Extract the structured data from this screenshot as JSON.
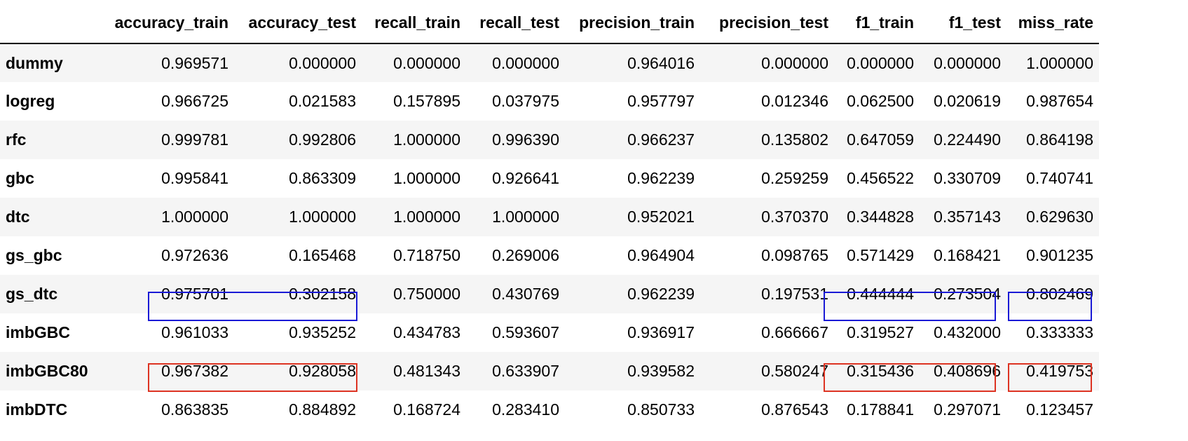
{
  "table": {
    "columns": [
      "",
      "accuracy_train",
      "accuracy_test",
      "recall_train",
      "recall_test",
      "precision_train",
      "precision_test",
      "f1_train",
      "f1_test",
      "miss_rate"
    ],
    "rows": [
      {
        "name": "dummy",
        "values": [
          "0.969571",
          "0.000000",
          "0.000000",
          "0.000000",
          "0.964016",
          "0.000000",
          "0.000000",
          "0.000000",
          "1.000000"
        ]
      },
      {
        "name": "logreg",
        "values": [
          "0.966725",
          "0.021583",
          "0.157895",
          "0.037975",
          "0.957797",
          "0.012346",
          "0.062500",
          "0.020619",
          "0.987654"
        ]
      },
      {
        "name": "rfc",
        "values": [
          "0.999781",
          "0.992806",
          "1.000000",
          "0.996390",
          "0.966237",
          "0.135802",
          "0.647059",
          "0.224490",
          "0.864198"
        ]
      },
      {
        "name": "gbc",
        "values": [
          "0.995841",
          "0.863309",
          "1.000000",
          "0.926641",
          "0.962239",
          "0.259259",
          "0.456522",
          "0.330709",
          "0.740741"
        ]
      },
      {
        "name": "dtc",
        "values": [
          "1.000000",
          "1.000000",
          "1.000000",
          "1.000000",
          "0.952021",
          "0.370370",
          "0.344828",
          "0.357143",
          "0.629630"
        ]
      },
      {
        "name": "gs_gbc",
        "values": [
          "0.972636",
          "0.165468",
          "0.718750",
          "0.269006",
          "0.964904",
          "0.098765",
          "0.571429",
          "0.168421",
          "0.901235"
        ]
      },
      {
        "name": "gs_dtc",
        "values": [
          "0.975701",
          "0.302158",
          "0.750000",
          "0.430769",
          "0.962239",
          "0.197531",
          "0.444444",
          "0.273504",
          "0.802469"
        ]
      },
      {
        "name": "imbGBC",
        "values": [
          "0.961033",
          "0.935252",
          "0.434783",
          "0.593607",
          "0.936917",
          "0.666667",
          "0.319527",
          "0.432000",
          "0.333333"
        ]
      },
      {
        "name": "imbGBC80",
        "values": [
          "0.967382",
          "0.928058",
          "0.481343",
          "0.633907",
          "0.939582",
          "0.580247",
          "0.315436",
          "0.408696",
          "0.419753"
        ]
      },
      {
        "name": "imbDTC",
        "values": [
          "0.863835",
          "0.884892",
          "0.168724",
          "0.283410",
          "0.850733",
          "0.876543",
          "0.178841",
          "0.297071",
          "0.123457"
        ]
      }
    ]
  },
  "highlight_colors": {
    "blue": "#1a1ad6",
    "red": "#dd3322"
  }
}
